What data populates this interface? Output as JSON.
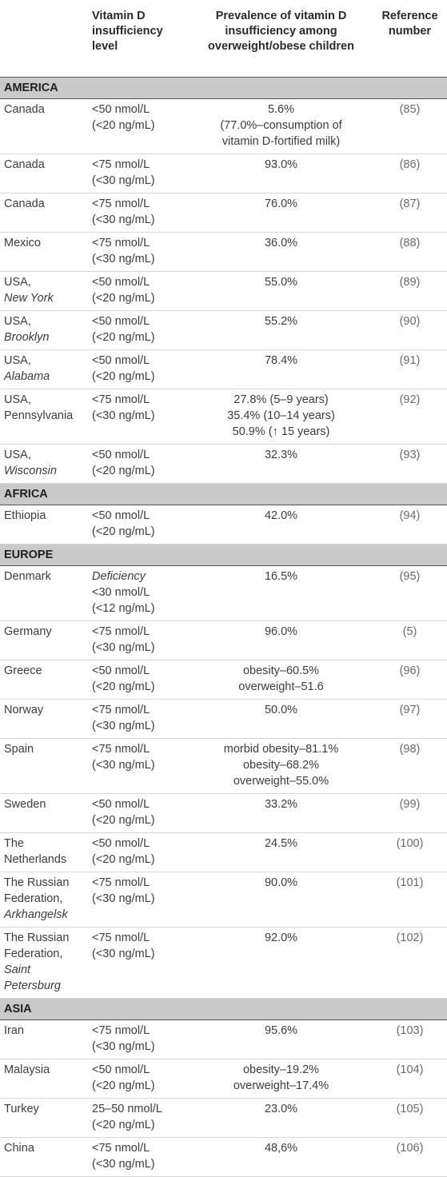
{
  "header": {
    "col1": "",
    "col2_lines": [
      "Vitamin D",
      "insufficiency",
      "level"
    ],
    "col3_lines": [
      "Prevalence of vitamin D",
      "insufficiency among",
      "overweight/obese children"
    ],
    "col4_lines": [
      "Reference",
      "number"
    ]
  },
  "sections": [
    {
      "region": "AMERICA",
      "rows": [
        {
          "country": [
            "Canada"
          ],
          "country_italic": [],
          "level": [
            "<50 nmol/L",
            "(<20 ng/mL)"
          ],
          "prev": [
            "5.6%",
            "(77.0%–consumption of",
            "vitamin D-fortified milk)"
          ],
          "ref": "(85)"
        },
        {
          "country": [
            "Canada"
          ],
          "country_italic": [],
          "level": [
            "<75 nmol/L",
            "(<30 ng/mL)"
          ],
          "prev": [
            "93.0%"
          ],
          "ref": "(86)"
        },
        {
          "country": [
            "Canada"
          ],
          "country_italic": [],
          "level": [
            "<75 nmol/L",
            "(<30 ng/mL)"
          ],
          "prev": [
            "76.0%"
          ],
          "ref": "(87)"
        },
        {
          "country": [
            "Mexico"
          ],
          "country_italic": [],
          "level": [
            "<75 nmol/L",
            "(<30 ng/mL)"
          ],
          "prev": [
            "36.0%"
          ],
          "ref": "(88)"
        },
        {
          "country": [
            "USA,"
          ],
          "country_italic": [
            "New York"
          ],
          "level": [
            "<50 nmol/L",
            "(<20 ng/mL)"
          ],
          "prev": [
            "55.0%"
          ],
          "ref": "(89)"
        },
        {
          "country": [
            "USA,"
          ],
          "country_italic": [
            "Brooklyn"
          ],
          "level": [
            "<50 nmol/L",
            "(<20 ng/mL)"
          ],
          "prev": [
            "55.2%"
          ],
          "ref": "(90)"
        },
        {
          "country": [
            "USA,"
          ],
          "country_italic": [
            "Alabama"
          ],
          "level": [
            "<50 nmol/L",
            "(<20 ng/mL)"
          ],
          "prev": [
            "78.4%"
          ],
          "ref": "(91)"
        },
        {
          "country": [
            "USA,",
            "Pennsylvania"
          ],
          "country_italic": [],
          "level": [
            "<75 nmol/L",
            "(<30 ng/mL)"
          ],
          "prev": [
            "27.8% (5–9 years)",
            "35.4% (10–14 years)",
            "50.9% (↑ 15 years)"
          ],
          "ref": "(92)"
        },
        {
          "country": [
            "USA,"
          ],
          "country_italic": [
            "Wisconsin"
          ],
          "level": [
            "<50 nmol/L",
            "(<20 ng/mL)"
          ],
          "prev": [
            "32.3%"
          ],
          "ref": "(93)"
        }
      ]
    },
    {
      "region": "AFRICA",
      "rows": [
        {
          "country": [
            "Ethiopia"
          ],
          "country_italic": [],
          "level": [
            "<50 nmol/L",
            "(<20 ng/mL)"
          ],
          "prev": [
            "42.0%"
          ],
          "ref": "(94)"
        }
      ]
    },
    {
      "region": "EUROPE",
      "rows": [
        {
          "country": [
            "Denmark"
          ],
          "country_italic": [],
          "level_italic_first": "Deficiency",
          "level": [
            "<30 nmol/L",
            "(<12 ng/mL)"
          ],
          "prev": [
            "16.5%"
          ],
          "ref": "(95)"
        },
        {
          "country": [
            "Germany"
          ],
          "country_italic": [],
          "level": [
            "<75 nmol/L",
            "(<30 ng/mL)"
          ],
          "prev": [
            "96.0%"
          ],
          "ref": "(5)"
        },
        {
          "country": [
            "Greece"
          ],
          "country_italic": [],
          "level": [
            "<50 nmol/L",
            "(<20 ng/mL)"
          ],
          "prev": [
            "obesity–60.5%",
            "overweight–51.6"
          ],
          "ref": "(96)"
        },
        {
          "country": [
            "Norway"
          ],
          "country_italic": [],
          "level": [
            "<75 nmol/L",
            "(<30 ng/mL)"
          ],
          "prev": [
            "50.0%"
          ],
          "ref": "(97)"
        },
        {
          "country": [
            "Spain"
          ],
          "country_italic": [],
          "level": [
            "<75 nmol/L",
            "(<30 ng/mL)"
          ],
          "prev": [
            "morbid obesity–81.1%",
            "obesity–68.2%",
            "overweight–55.0%"
          ],
          "ref": "(98)"
        },
        {
          "country": [
            "Sweden"
          ],
          "country_italic": [],
          "level": [
            "<50 nmol/L",
            "(<20 ng/mL)"
          ],
          "prev": [
            "33.2%"
          ],
          "ref": "(99)"
        },
        {
          "country": [
            "The",
            "Netherlands"
          ],
          "country_italic": [],
          "level": [
            "<50 nmol/L",
            "(<20 ng/mL)"
          ],
          "prev": [
            "24.5%"
          ],
          "ref": "(100)"
        },
        {
          "country": [
            "The Russian",
            "Federation,"
          ],
          "country_italic": [
            "Arkhangelsk"
          ],
          "level": [
            "<75 nmol/L",
            "(<30 ng/mL)"
          ],
          "prev": [
            "90.0%"
          ],
          "ref": "(101)"
        },
        {
          "country": [
            "The Russian",
            "Federation,"
          ],
          "country_italic": [
            "Saint",
            "Petersburg"
          ],
          "level": [
            "<75 nmol/L",
            "(<30 ng/mL)"
          ],
          "prev": [
            "92.0%"
          ],
          "ref": "(102)"
        }
      ]
    },
    {
      "region": "ASIA",
      "rows": [
        {
          "country": [
            "Iran"
          ],
          "country_italic": [],
          "level": [
            "<75 nmol/L",
            "(<30 ng/mL)"
          ],
          "prev": [
            "95.6%"
          ],
          "ref": "(103)"
        },
        {
          "country": [
            "Malaysia"
          ],
          "country_italic": [],
          "level": [
            "<50 nmol/L",
            "(<20 ng/mL)"
          ],
          "prev": [
            "obesity–19.2%",
            "overweight–17.4%"
          ],
          "ref": "(104)"
        },
        {
          "country": [
            "Turkey"
          ],
          "country_italic": [],
          "level": [
            "25–50 nmol/L",
            "(<20 ng/mL)"
          ],
          "prev": [
            "23.0%"
          ],
          "ref": "(105)"
        },
        {
          "country": [
            "China"
          ],
          "country_italic": [],
          "level": [
            "<75 nmol/L",
            "(<30 ng/mL)"
          ],
          "prev": [
            "48,6%"
          ],
          "ref": "(106)"
        }
      ]
    }
  ]
}
